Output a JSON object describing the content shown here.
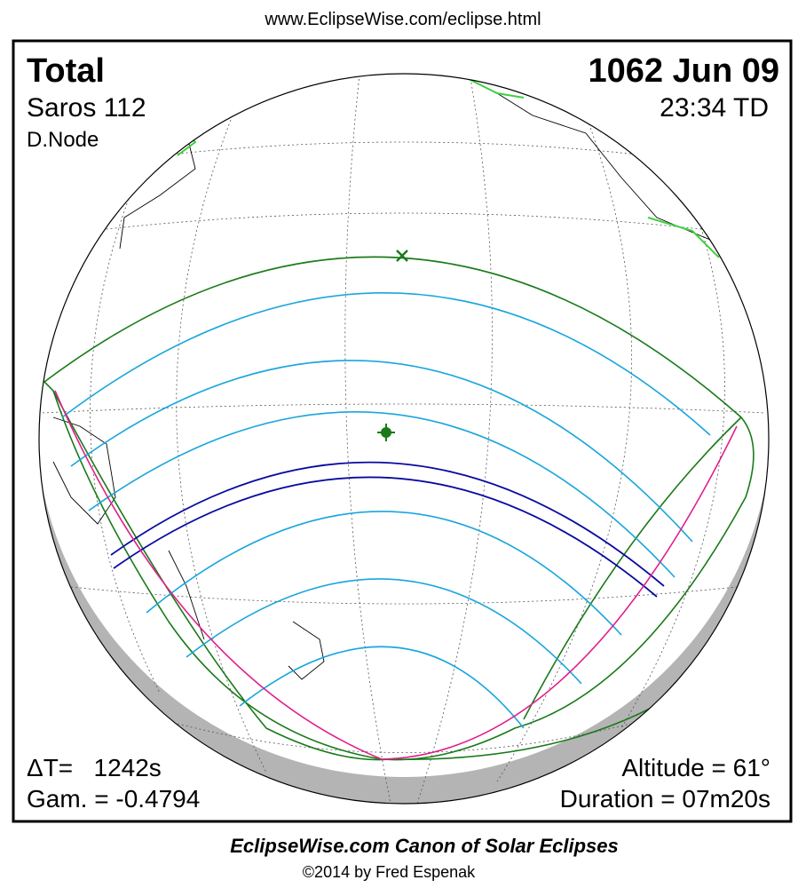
{
  "header": {
    "url": "www.EclipseWise.com/eclipse.html"
  },
  "eclipse": {
    "type": "Total",
    "date": "1062 Jun 09",
    "saros": "Saros 112",
    "time": "23:34 TD",
    "node": "D.Node",
    "delta_t": "ΔT=   1242s",
    "gamma": "Gam. = -0.4794",
    "altitude": "Altitude = 61°",
    "duration": "Duration = 07m20s"
  },
  "footer": {
    "title": "EclipseWise.com Canon of Solar Eclipses",
    "credit": "©2014 by Fred Espenak"
  }
}
